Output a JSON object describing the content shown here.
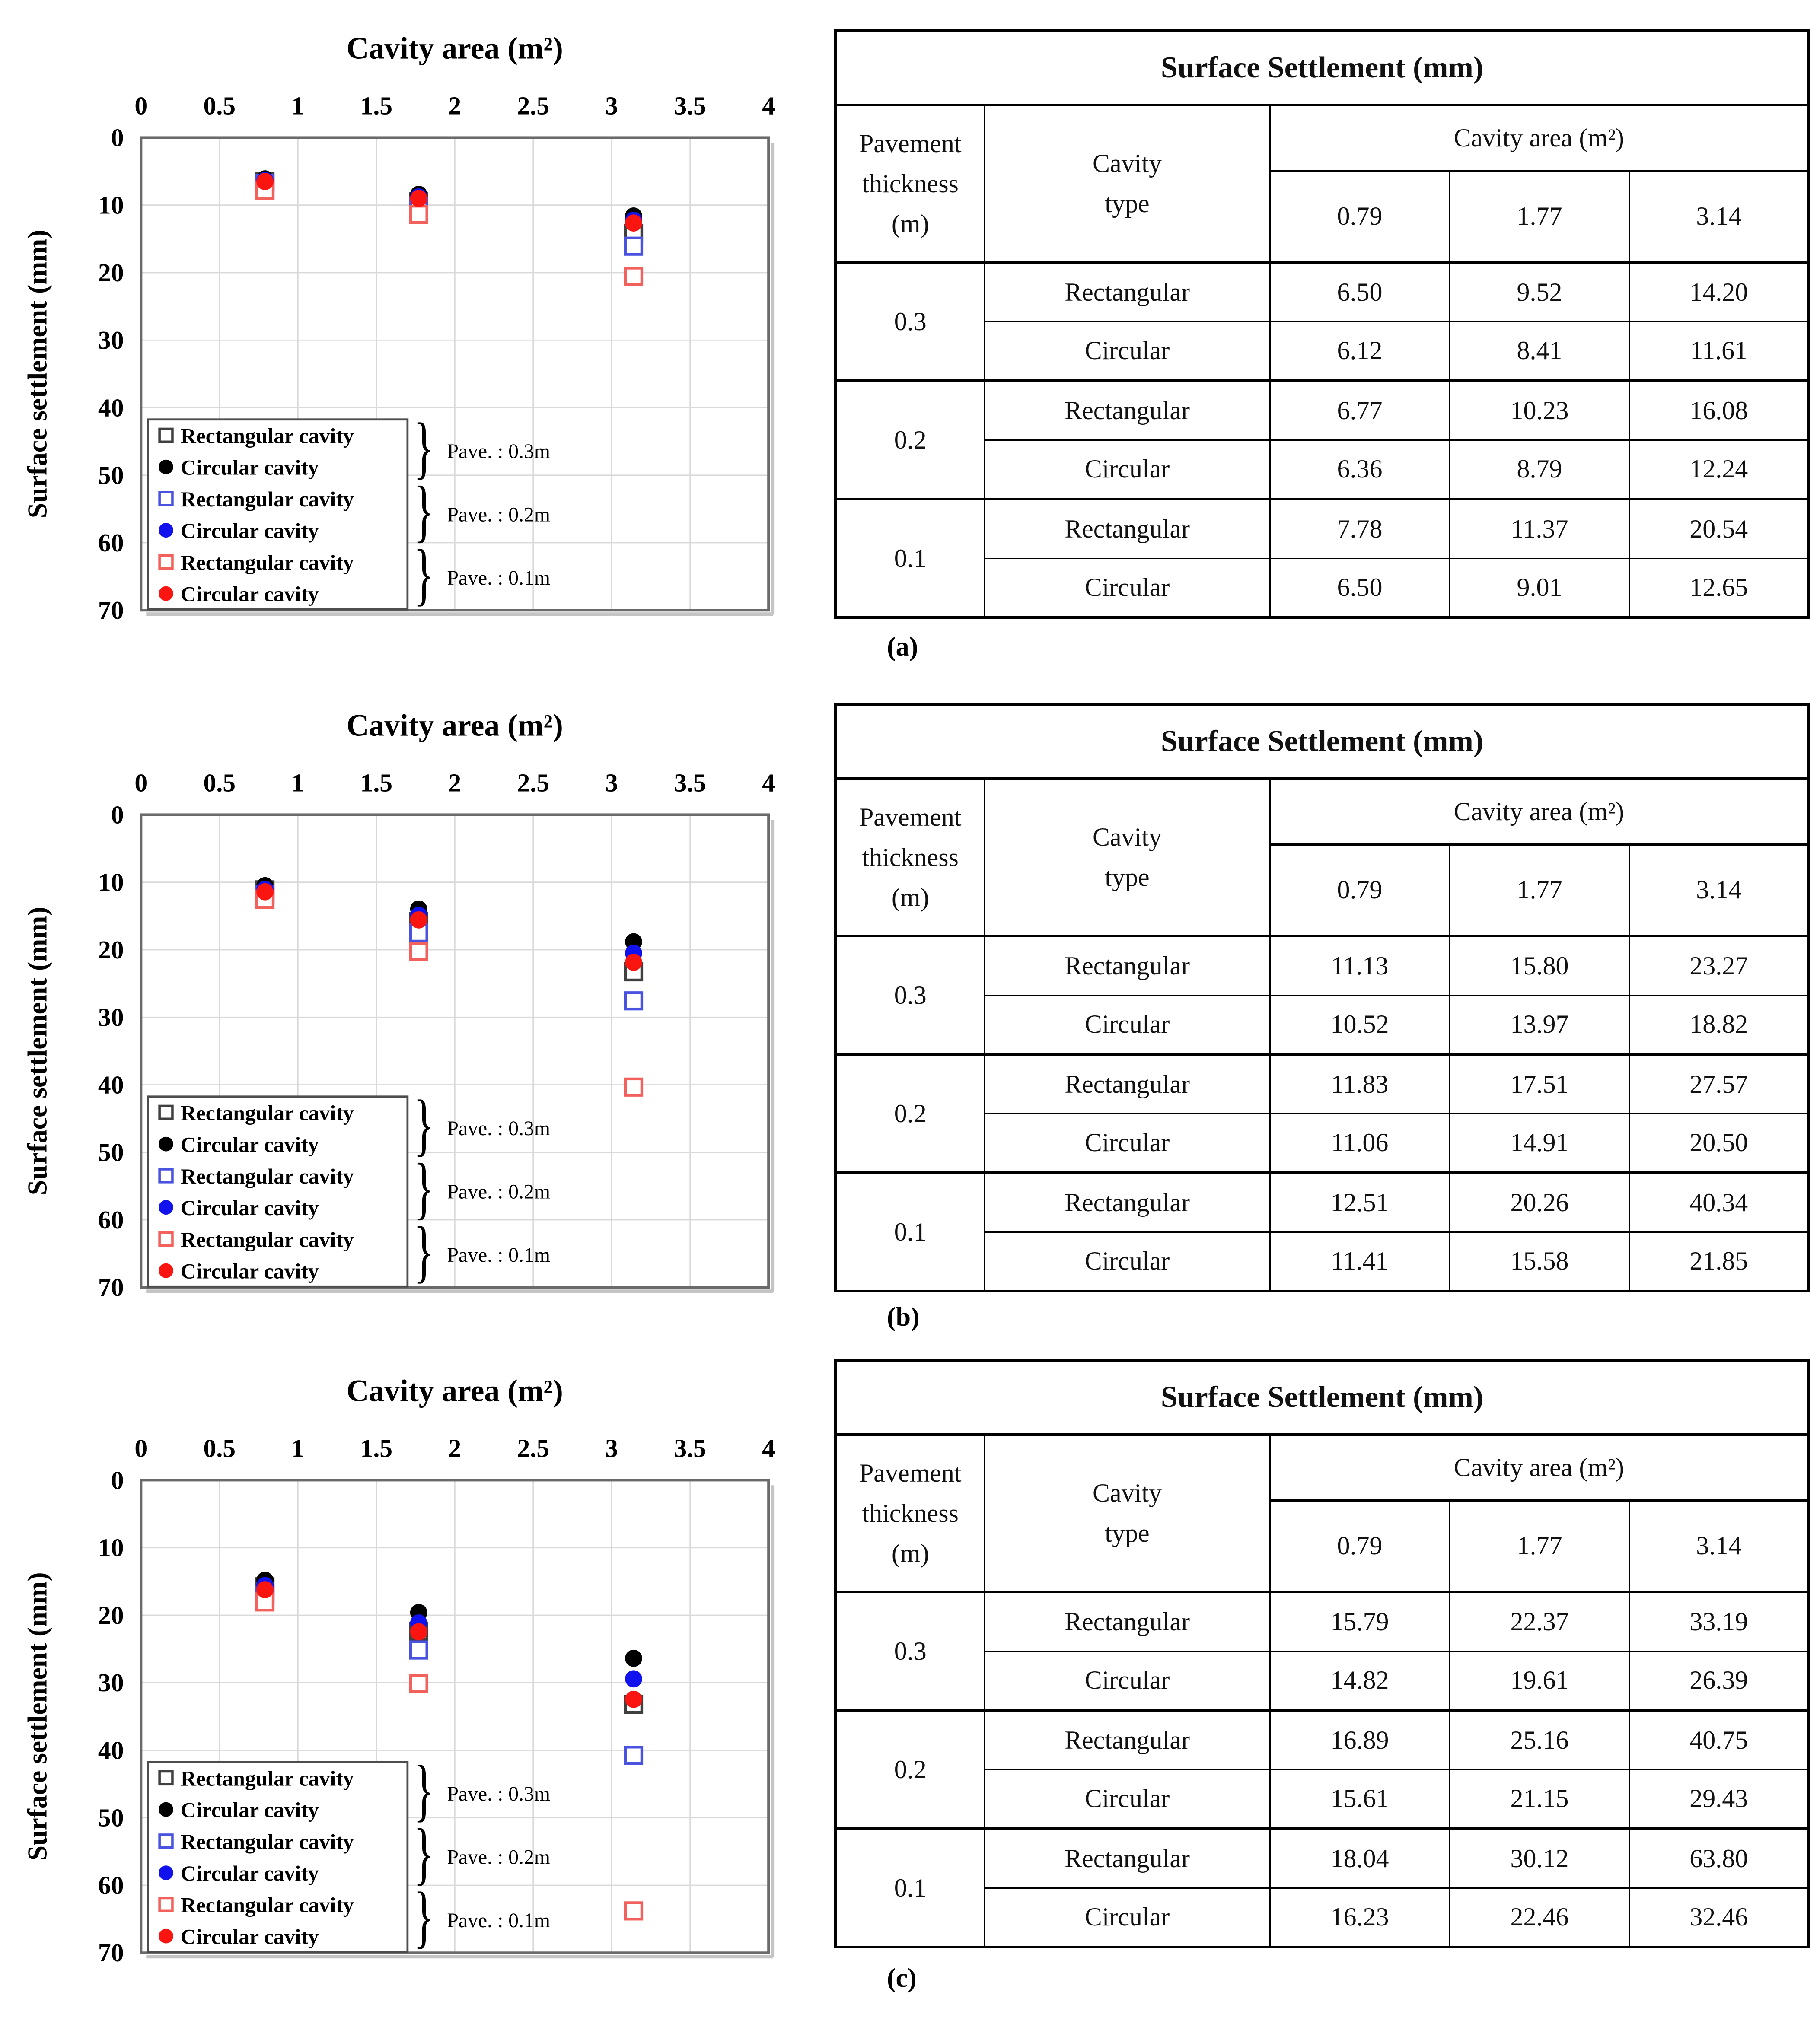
{
  "page": {
    "background": "#ffffff"
  },
  "panel_labels": [
    "(a)",
    "(b)",
    "(c)"
  ],
  "colors": {
    "grid": "#d9d9d9",
    "plot_border": "#6a6a6a",
    "plot_shadow": "#c4c4c4",
    "legend_border": "#4d4d4d",
    "black_square_stroke": "#404040",
    "black_circle": "#000000",
    "blue_square_stroke": "#4a52e0",
    "blue_circle": "#1212ee",
    "red_square_stroke": "#f2615c",
    "red_circle": "#fb1511"
  },
  "chart_data": [
    {
      "type": "scatter",
      "panel": "a",
      "top_axis_title": "Cavity area (m²)",
      "ylabel": "Surface settlement (mm)",
      "xlim": [
        0,
        4
      ],
      "ylim": [
        0,
        70
      ],
      "y_inverted": true,
      "grid": true,
      "x_ticks": [
        "0",
        "0.5",
        "1",
        "1.5",
        "2",
        "2.5",
        "3",
        "3.5",
        "4"
      ],
      "y_ticks": [
        "0",
        "10",
        "20",
        "30",
        "40",
        "50",
        "60",
        "70"
      ],
      "x": [
        0.79,
        1.77,
        3.14
      ],
      "series": [
        {
          "name": "Rectangular cavity",
          "pavement": "Pave. : 0.3m",
          "marker": "open-square",
          "color": "#404040",
          "values": [
            6.5,
            9.52,
            14.2
          ]
        },
        {
          "name": "Circular cavity",
          "pavement": "Pave. : 0.3m",
          "marker": "filled-circle",
          "color": "#000000",
          "values": [
            6.12,
            8.41,
            11.61
          ]
        },
        {
          "name": "Rectangular cavity",
          "pavement": "Pave. : 0.2m",
          "marker": "open-square",
          "color": "#4a52e0",
          "values": [
            6.77,
            10.23,
            16.08
          ]
        },
        {
          "name": "Circular cavity",
          "pavement": "Pave. : 0.2m",
          "marker": "filled-circle",
          "color": "#1212ee",
          "values": [
            6.36,
            8.79,
            12.24
          ]
        },
        {
          "name": "Rectangular cavity",
          "pavement": "Pave. : 0.1m",
          "marker": "open-square",
          "color": "#f2615c",
          "values": [
            7.78,
            11.37,
            20.54
          ]
        },
        {
          "name": "Circular cavity",
          "pavement": "Pave. : 0.1m",
          "marker": "filled-circle",
          "color": "#fb1511",
          "values": [
            6.5,
            9.01,
            12.65
          ]
        }
      ],
      "legend_groups": [
        "Pave. : 0.3m",
        "Pave. : 0.2m",
        "Pave. : 0.1m"
      ],
      "legend_position": "bottom-left"
    },
    {
      "type": "scatter",
      "panel": "b",
      "top_axis_title": "Cavity area (m²)",
      "ylabel": "Surface settlement (mm)",
      "xlim": [
        0,
        4
      ],
      "ylim": [
        0,
        70
      ],
      "y_inverted": true,
      "grid": true,
      "x_ticks": [
        "0",
        "0.5",
        "1",
        "1.5",
        "2",
        "2.5",
        "3",
        "3.5",
        "4"
      ],
      "y_ticks": [
        "0",
        "10",
        "20",
        "30",
        "40",
        "50",
        "60",
        "70"
      ],
      "x": [
        0.79,
        1.77,
        3.14
      ],
      "series": [
        {
          "name": "Rectangular cavity",
          "pavement": "Pave. : 0.3m",
          "marker": "open-square",
          "color": "#404040",
          "values": [
            11.13,
            15.8,
            23.27
          ]
        },
        {
          "name": "Circular cavity",
          "pavement": "Pave. : 0.3m",
          "marker": "filled-circle",
          "color": "#000000",
          "values": [
            10.52,
            13.97,
            18.82
          ]
        },
        {
          "name": "Rectangular cavity",
          "pavement": "Pave. : 0.2m",
          "marker": "open-square",
          "color": "#4a52e0",
          "values": [
            11.83,
            17.51,
            27.57
          ]
        },
        {
          "name": "Circular cavity",
          "pavement": "Pave. : 0.2m",
          "marker": "filled-circle",
          "color": "#1212ee",
          "values": [
            11.06,
            14.91,
            20.5
          ]
        },
        {
          "name": "Rectangular cavity",
          "pavement": "Pave. : 0.1m",
          "marker": "open-square",
          "color": "#f2615c",
          "values": [
            12.51,
            20.26,
            40.34
          ]
        },
        {
          "name": "Circular cavity",
          "pavement": "Pave. : 0.1m",
          "marker": "filled-circle",
          "color": "#fb1511",
          "values": [
            11.41,
            15.58,
            21.85
          ]
        }
      ],
      "legend_groups": [
        "Pave. : 0.3m",
        "Pave. : 0.2m",
        "Pave. : 0.1m"
      ],
      "legend_position": "bottom-left"
    },
    {
      "type": "scatter",
      "panel": "c",
      "top_axis_title": "Cavity area (m²)",
      "ylabel": "Surface settlement (mm)",
      "xlim": [
        0,
        4
      ],
      "ylim": [
        0,
        70
      ],
      "y_inverted": true,
      "grid": true,
      "x_ticks": [
        "0",
        "0.5",
        "1",
        "1.5",
        "2",
        "2.5",
        "3",
        "3.5",
        "4"
      ],
      "y_ticks": [
        "0",
        "10",
        "20",
        "30",
        "40",
        "50",
        "60",
        "70"
      ],
      "x": [
        0.79,
        1.77,
        3.14
      ],
      "series": [
        {
          "name": "Rectangular cavity",
          "pavement": "Pave. : 0.3m",
          "marker": "open-square",
          "color": "#404040",
          "values": [
            15.79,
            22.37,
            33.19
          ]
        },
        {
          "name": "Circular cavity",
          "pavement": "Pave. : 0.3m",
          "marker": "filled-circle",
          "color": "#000000",
          "values": [
            14.82,
            19.61,
            26.39
          ]
        },
        {
          "name": "Rectangular cavity",
          "pavement": "Pave. : 0.2m",
          "marker": "open-square",
          "color": "#4a52e0",
          "values": [
            16.89,
            25.16,
            40.75
          ]
        },
        {
          "name": "Circular cavity",
          "pavement": "Pave. : 0.2m",
          "marker": "filled-circle",
          "color": "#1212ee",
          "values": [
            15.61,
            21.15,
            29.43
          ]
        },
        {
          "name": "Rectangular cavity",
          "pavement": "Pave. : 0.1m",
          "marker": "open-square",
          "color": "#f2615c",
          "values": [
            18.04,
            30.12,
            63.8
          ]
        },
        {
          "name": "Circular cavity",
          "pavement": "Pave. : 0.1m",
          "marker": "filled-circle",
          "color": "#fb1511",
          "values": [
            16.23,
            22.46,
            32.46
          ]
        }
      ],
      "legend_groups": [
        "Pave. : 0.3m",
        "Pave. : 0.2m",
        "Pave. : 0.1m"
      ],
      "legend_position": "bottom-left"
    }
  ],
  "tables": [
    {
      "panel": "a",
      "title": "Surface Settlement (mm)",
      "row_header": "Pavement\nthickness\n(m)",
      "col_header": "Cavity\ntype",
      "span_header": "Cavity area (m²)",
      "area_values": [
        "0.79",
        "1.77",
        "3.14"
      ],
      "groups": [
        {
          "thickness": "0.3",
          "rows": [
            {
              "type": "Rectangular",
              "values": [
                "6.50",
                "9.52",
                "14.20"
              ]
            },
            {
              "type": "Circular",
              "values": [
                "6.12",
                "8.41",
                "11.61"
              ]
            }
          ]
        },
        {
          "thickness": "0.2",
          "rows": [
            {
              "type": "Rectangular",
              "values": [
                "6.77",
                "10.23",
                "16.08"
              ]
            },
            {
              "type": "Circular",
              "values": [
                "6.36",
                "8.79",
                "12.24"
              ]
            }
          ]
        },
        {
          "thickness": "0.1",
          "rows": [
            {
              "type": "Rectangular",
              "values": [
                "7.78",
                "11.37",
                "20.54"
              ]
            },
            {
              "type": "Circular",
              "values": [
                "6.50",
                "9.01",
                "12.65"
              ]
            }
          ]
        }
      ]
    },
    {
      "panel": "b",
      "title": "Surface Settlement (mm)",
      "row_header": "Pavement\nthickness\n(m)",
      "col_header": "Cavity\ntype",
      "span_header": "Cavity area (m²)",
      "area_values": [
        "0.79",
        "1.77",
        "3.14"
      ],
      "groups": [
        {
          "thickness": "0.3",
          "rows": [
            {
              "type": "Rectangular",
              "values": [
                "11.13",
                "15.80",
                "23.27"
              ]
            },
            {
              "type": "Circular",
              "values": [
                "10.52",
                "13.97",
                "18.82"
              ]
            }
          ]
        },
        {
          "thickness": "0.2",
          "rows": [
            {
              "type": "Rectangular",
              "values": [
                "11.83",
                "17.51",
                "27.57"
              ]
            },
            {
              "type": "Circular",
              "values": [
                "11.06",
                "14.91",
                "20.50"
              ]
            }
          ]
        },
        {
          "thickness": "0.1",
          "rows": [
            {
              "type": "Rectangular",
              "values": [
                "12.51",
                "20.26",
                "40.34"
              ]
            },
            {
              "type": "Circular",
              "values": [
                "11.41",
                "15.58",
                "21.85"
              ]
            }
          ]
        }
      ]
    },
    {
      "panel": "c",
      "title": "Surface Settlement (mm)",
      "row_header": "Pavement\nthickness\n(m)",
      "col_header": "Cavity\ntype",
      "span_header": "Cavity area (m²)",
      "area_values": [
        "0.79",
        "1.77",
        "3.14"
      ],
      "groups": [
        {
          "thickness": "0.3",
          "rows": [
            {
              "type": "Rectangular",
              "values": [
                "15.79",
                "22.37",
                "33.19"
              ]
            },
            {
              "type": "Circular",
              "values": [
                "14.82",
                "19.61",
                "26.39"
              ]
            }
          ]
        },
        {
          "thickness": "0.2",
          "rows": [
            {
              "type": "Rectangular",
              "values": [
                "16.89",
                "25.16",
                "40.75"
              ]
            },
            {
              "type": "Circular",
              "values": [
                "15.61",
                "21.15",
                "29.43"
              ]
            }
          ]
        },
        {
          "thickness": "0.1",
          "rows": [
            {
              "type": "Rectangular",
              "values": [
                "18.04",
                "30.12",
                "63.80"
              ]
            },
            {
              "type": "Circular",
              "values": [
                "16.23",
                "22.46",
                "32.46"
              ]
            }
          ]
        }
      ]
    }
  ]
}
